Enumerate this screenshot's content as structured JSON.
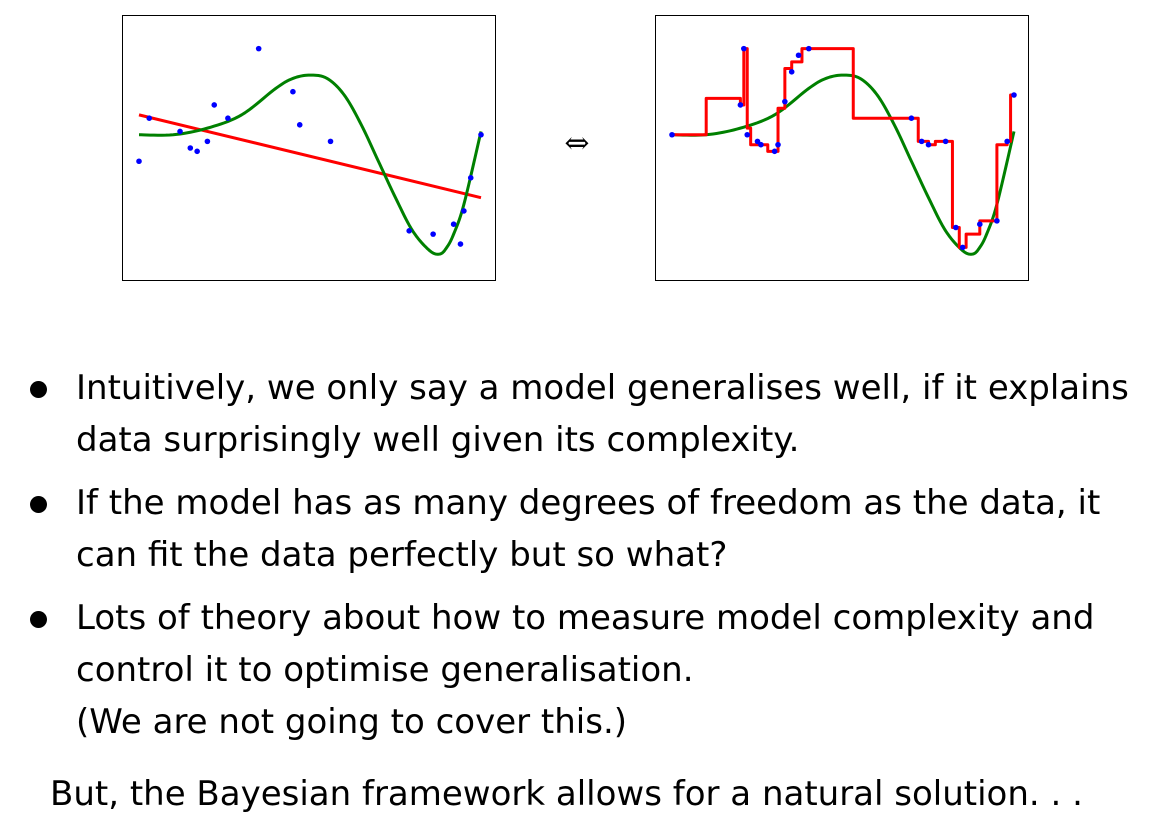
{
  "equivalence_symbol": "⇔",
  "bullets": [
    {
      "lines": [
        "Intuitively, we only say a model generalises well, if it explains",
        "data surprisingly well given its complexity."
      ]
    },
    {
      "lines": [
        "If the model has as many degrees of freedom as the data, it",
        "can fit the data perfectly but so what?"
      ]
    },
    {
      "lines": [
        "Lots of theory about how to measure model complexity and",
        "control it to optimise generalisation.",
        "(We are not going to cover this.)"
      ]
    }
  ],
  "conclusion": "But, the Bayesian framework allows for a natural solution. . .",
  "colors": {
    "data_points": "#0000ff",
    "smooth_fit": "#008000",
    "model_fit": "#ff0000"
  },
  "chart_data": [
    {
      "type": "scatter",
      "title": "",
      "xlim": [
        0,
        1
      ],
      "ylim": [
        -1.6,
        1.6
      ],
      "grid": false,
      "points": {
        "x": [
          0.0,
          0.03,
          0.12,
          0.15,
          0.17,
          0.2,
          0.22,
          0.26,
          0.35,
          0.45,
          0.47,
          0.56,
          0.79,
          0.86,
          0.92,
          0.94,
          0.95,
          0.97,
          1.0
        ],
        "y": [
          -0.2,
          0.45,
          0.25,
          0.0,
          -0.05,
          0.1,
          0.65,
          0.45,
          1.5,
          0.85,
          0.35,
          0.1,
          -1.25,
          -1.3,
          -1.15,
          -1.45,
          -0.95,
          -0.45,
          0.2
        ]
      },
      "series": [
        {
          "kind": "line",
          "x": [
            0.0,
            1.0
          ],
          "y": [
            0.5,
            -0.75
          ]
        },
        {
          "kind": "line",
          "x": [
            0.0,
            0.1,
            0.2,
            0.3,
            0.4,
            0.45,
            0.5,
            0.55,
            0.6,
            0.65,
            0.7,
            0.75,
            0.8,
            0.85,
            0.88,
            0.9,
            0.92,
            0.95,
            1.0
          ],
          "y": [
            0.2,
            0.2,
            0.3,
            0.5,
            0.9,
            1.05,
            1.1,
            1.05,
            0.8,
            0.35,
            -0.2,
            -0.75,
            -1.25,
            -1.55,
            -1.6,
            -1.5,
            -1.3,
            -0.85,
            0.25
          ]
        }
      ]
    },
    {
      "type": "scatter",
      "title": "",
      "xlim": [
        0,
        1
      ],
      "ylim": [
        -1.6,
        1.6
      ],
      "grid": false,
      "points": {
        "x": [
          0.0,
          0.2,
          0.21,
          0.22,
          0.25,
          0.26,
          0.3,
          0.31,
          0.33,
          0.35,
          0.37,
          0.4,
          0.7,
          0.73,
          0.75,
          0.8,
          0.83,
          0.85,
          0.9,
          0.95,
          0.98,
          1.0
        ],
        "y": [
          0.2,
          0.65,
          1.5,
          0.2,
          0.1,
          0.05,
          -0.05,
          0.05,
          0.7,
          1.15,
          1.4,
          1.5,
          0.45,
          0.1,
          0.05,
          0.1,
          -1.2,
          -1.5,
          -1.15,
          -1.1,
          0.1,
          0.8
        ]
      },
      "series": [
        {
          "kind": "line",
          "x": [
            0.0,
            0.1,
            0.2,
            0.3,
            0.4,
            0.45,
            0.5,
            0.55,
            0.6,
            0.65,
            0.7,
            0.75,
            0.8,
            0.85,
            0.88,
            0.9,
            0.92,
            0.95,
            1.0
          ],
          "y": [
            0.2,
            0.2,
            0.3,
            0.5,
            0.9,
            1.05,
            1.1,
            1.05,
            0.8,
            0.35,
            -0.2,
            -0.75,
            -1.25,
            -1.55,
            -1.6,
            -1.5,
            -1.3,
            -0.85,
            0.25
          ]
        },
        {
          "kind": "step",
          "x": [
            0.0,
            0.09,
            0.1,
            0.18,
            0.2,
            0.21,
            0.22,
            0.23,
            0.25,
            0.28,
            0.3,
            0.31,
            0.33,
            0.35,
            0.38,
            0.52,
            0.53,
            0.7,
            0.72,
            0.75,
            0.77,
            0.8,
            0.82,
            0.84,
            0.86,
            0.9,
            0.91,
            0.95,
            0.96,
            0.98,
            0.99,
            1.0
          ],
          "y": [
            0.2,
            0.2,
            0.75,
            0.75,
            0.65,
            1.5,
            0.3,
            0.05,
            0.05,
            -0.05,
            -0.05,
            0.6,
            1.2,
            1.3,
            1.5,
            1.5,
            0.45,
            0.45,
            0.1,
            0.05,
            0.1,
            0.1,
            -1.2,
            -1.5,
            -1.3,
            -1.1,
            -1.1,
            0.05,
            0.05,
            0.1,
            0.8,
            0.8
          ]
        }
      ]
    }
  ]
}
